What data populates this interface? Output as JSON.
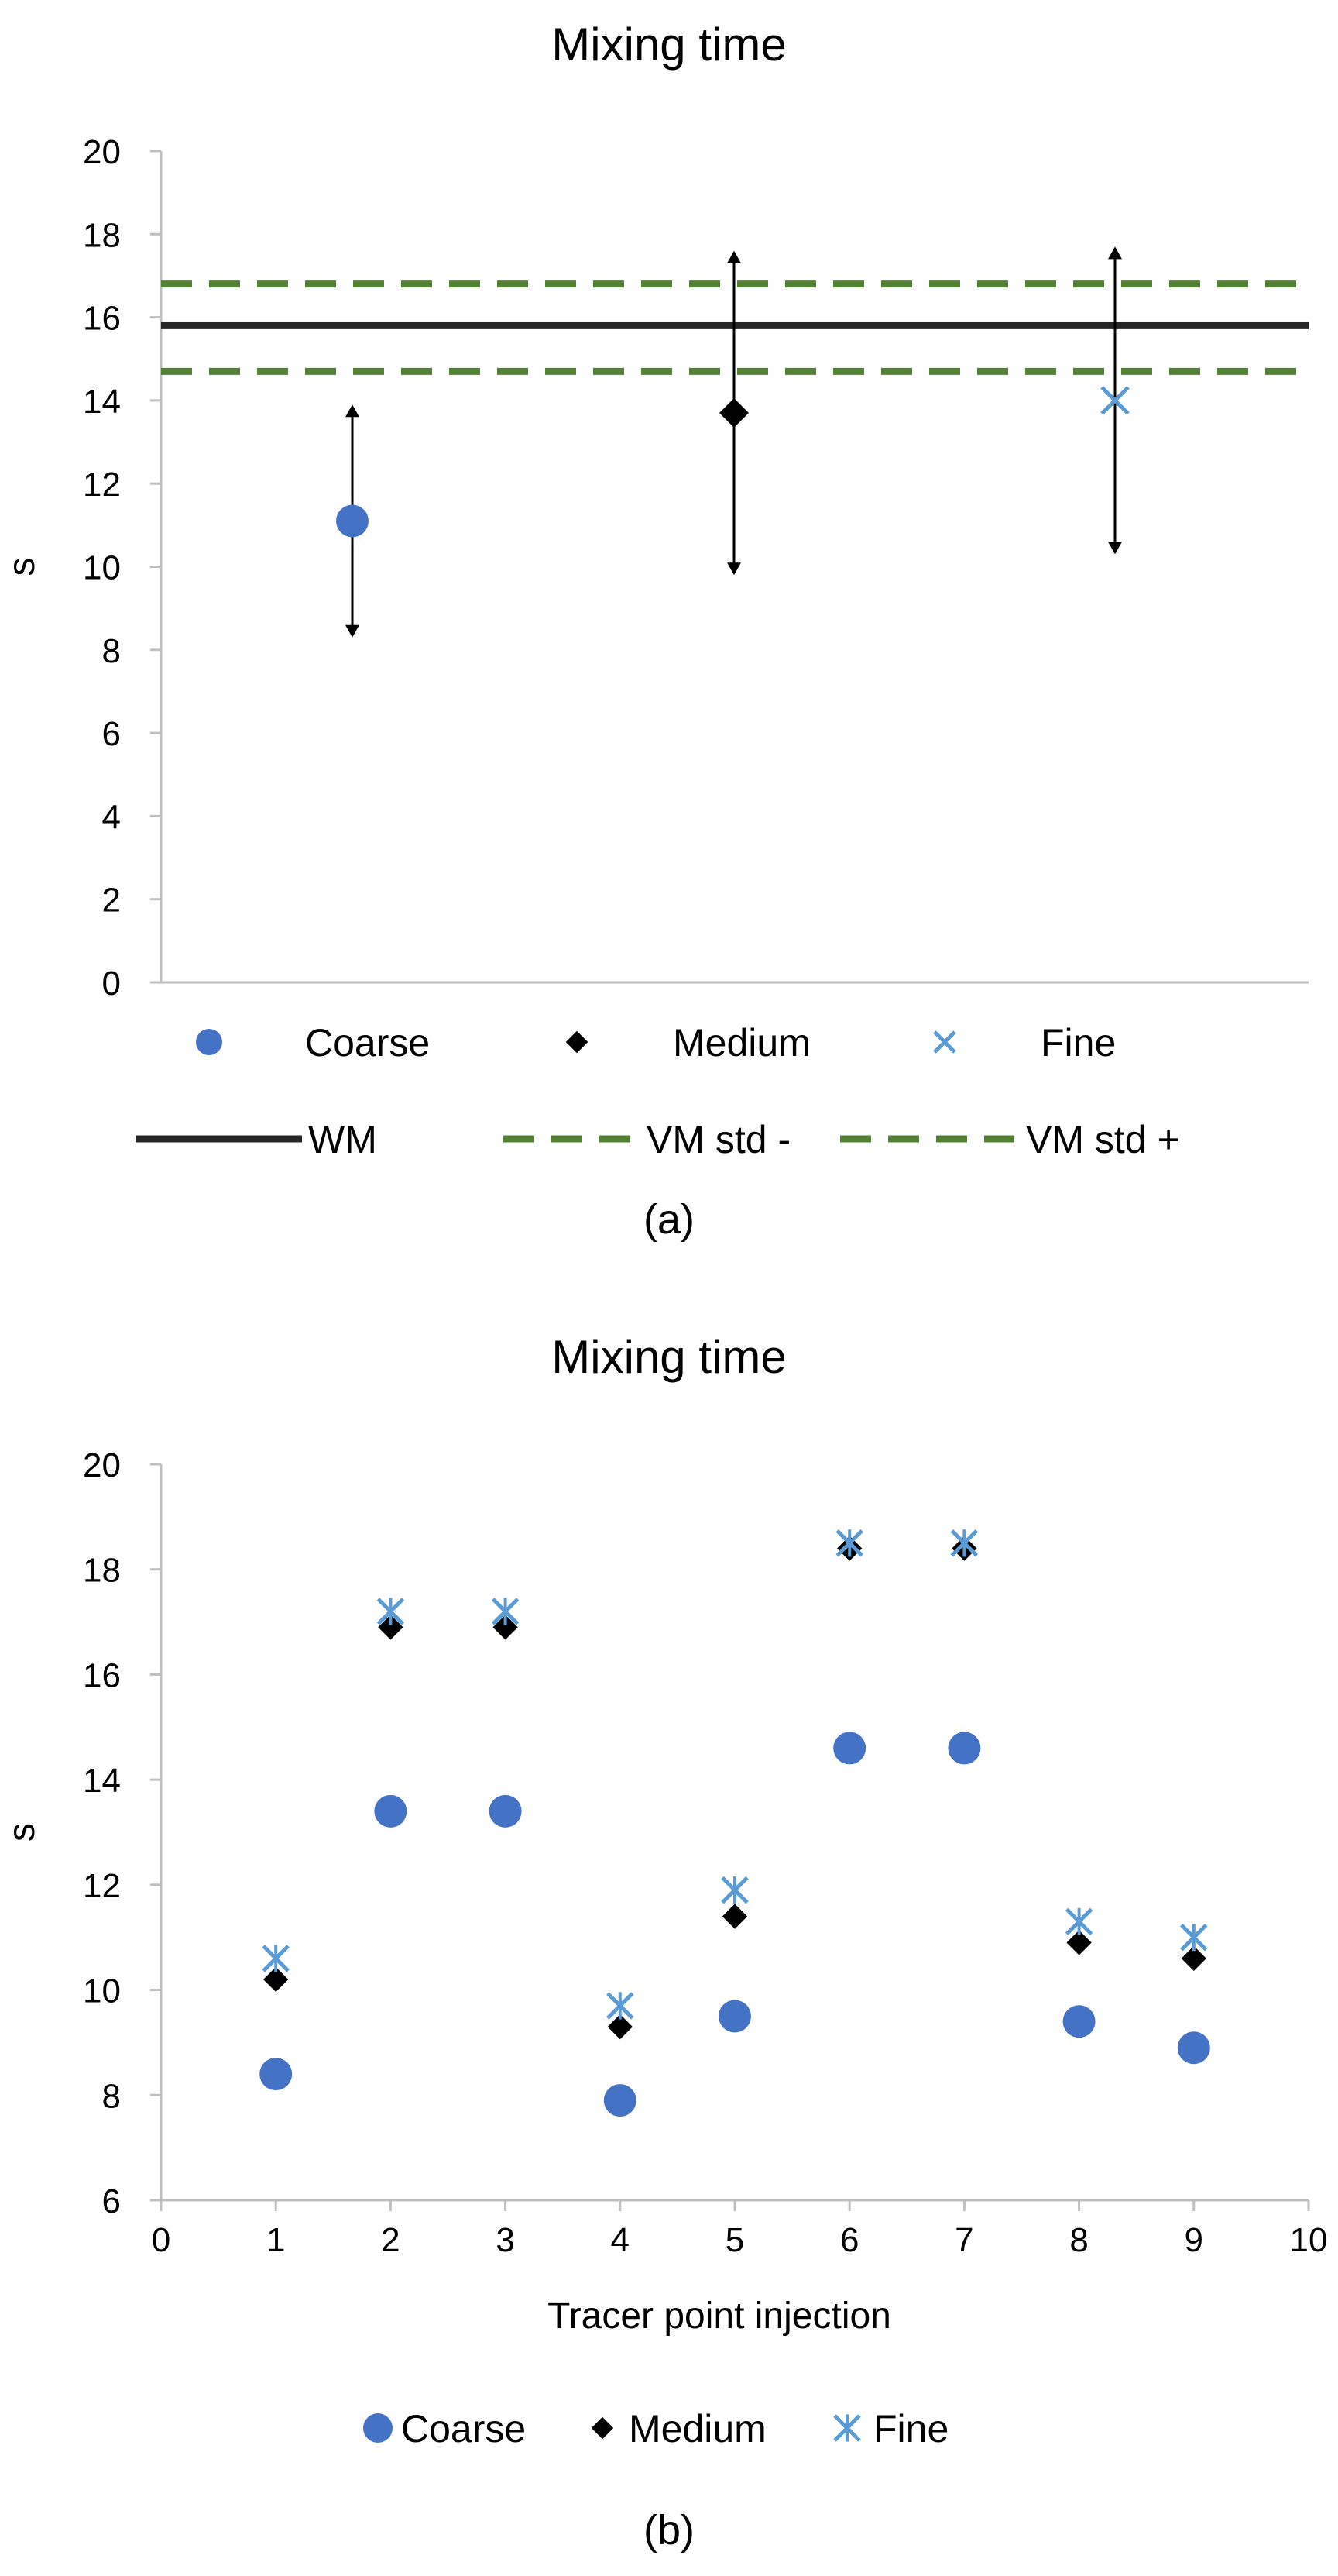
{
  "chart_data": [
    {
      "type": "scatter",
      "title": "Mixing time",
      "ylabel": "s",
      "xlabel": "",
      "ylim": [
        0,
        20
      ],
      "yticks": [
        0,
        2,
        4,
        6,
        8,
        10,
        12,
        14,
        16,
        18,
        20
      ],
      "series": [
        {
          "name": "Coarse",
          "x": 1,
          "y": 11.1,
          "error_low": 8.3,
          "error_high": 13.9,
          "marker": "circle",
          "color": "#4472C4"
        },
        {
          "name": "Medium",
          "x": 2,
          "y": 13.7,
          "error_low": 9.8,
          "error_high": 17.6,
          "marker": "diamond",
          "color": "#000000"
        },
        {
          "name": "Fine",
          "x": 3,
          "y": 14.0,
          "error_low": 10.3,
          "error_high": 17.7,
          "marker": "x",
          "color": "#5B9BD5"
        }
      ],
      "reference_lines": [
        {
          "name": "WM",
          "y": 15.8,
          "style": "solid",
          "color": "#262626"
        },
        {
          "name": "VM std -",
          "y": 14.7,
          "style": "dashed",
          "color": "#548235"
        },
        {
          "name": "VM std +",
          "y": 16.8,
          "style": "dashed",
          "color": "#548235"
        }
      ],
      "legend": [
        "Coarse",
        "Medium",
        "Fine",
        "WM",
        "VM std -",
        "VM std +"
      ],
      "caption": "(a)"
    },
    {
      "type": "scatter",
      "title": "Mixing time",
      "ylabel": "s",
      "xlabel": "Tracer point injection",
      "xlim": [
        0,
        10
      ],
      "ylim": [
        6,
        20
      ],
      "xticks": [
        0,
        1,
        2,
        3,
        4,
        5,
        6,
        7,
        8,
        9,
        10
      ],
      "yticks": [
        6,
        8,
        10,
        12,
        14,
        16,
        18,
        20
      ],
      "series": [
        {
          "name": "Coarse",
          "marker": "circle",
          "color": "#4472C4",
          "x": [
            1,
            2,
            3,
            4,
            5,
            6,
            7,
            8,
            9
          ],
          "y": [
            8.4,
            13.4,
            13.4,
            7.9,
            9.5,
            14.6,
            14.6,
            9.4,
            8.9
          ]
        },
        {
          "name": "Medium",
          "marker": "diamond",
          "color": "#000000",
          "x": [
            1,
            2,
            3,
            4,
            5,
            6,
            7,
            8,
            9
          ],
          "y": [
            10.2,
            16.9,
            16.9,
            9.3,
            11.4,
            18.4,
            18.4,
            10.9,
            10.6
          ]
        },
        {
          "name": "Fine",
          "marker": "x",
          "color": "#5B9BD5",
          "x": [
            1,
            2,
            3,
            4,
            5,
            6,
            7,
            8,
            9
          ],
          "y": [
            10.6,
            17.2,
            17.2,
            9.7,
            11.9,
            18.5,
            18.5,
            11.3,
            11.0
          ]
        }
      ],
      "legend": [
        "Coarse",
        "Medium",
        "Fine"
      ],
      "caption": "(b)"
    }
  ]
}
